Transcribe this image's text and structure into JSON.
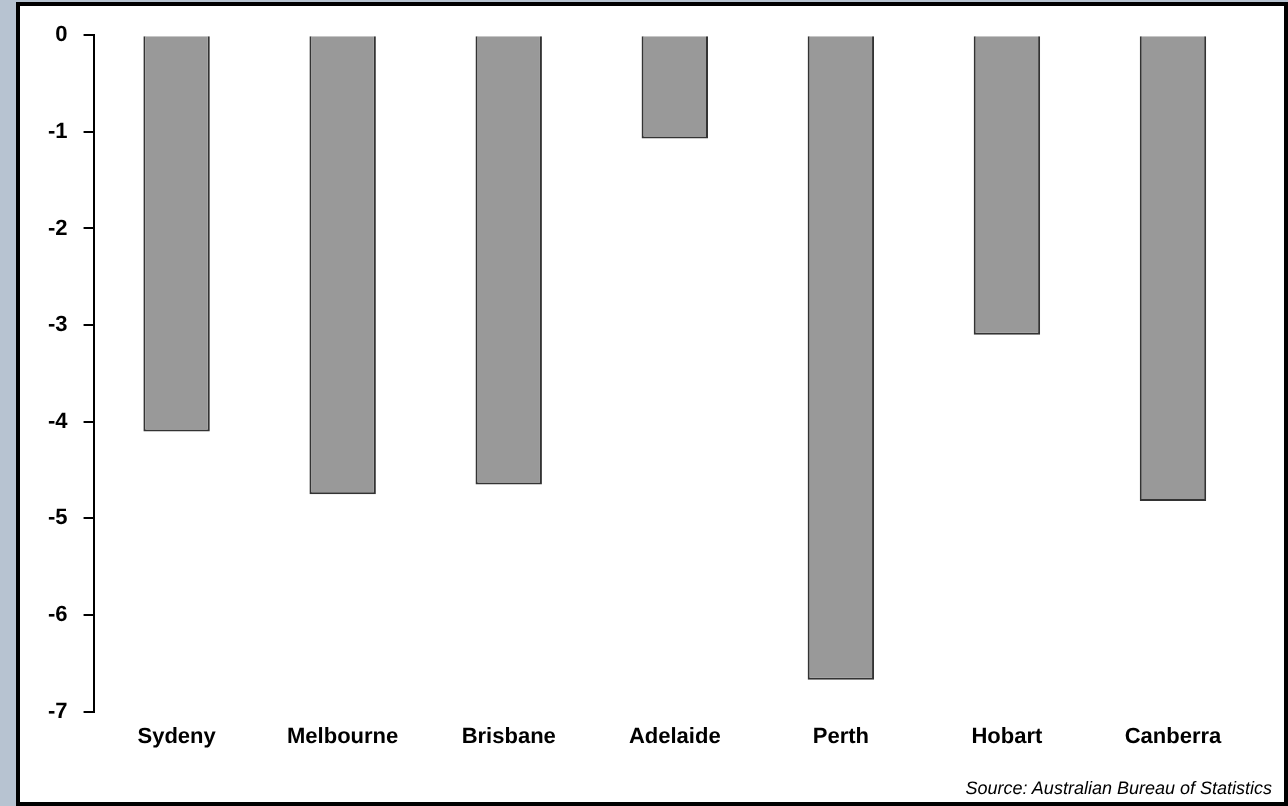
{
  "chart_data": {
    "type": "bar",
    "categories": [
      "Sydeny",
      "Melbourne",
      "Brisbane",
      "Adelaide",
      "Perth",
      "Hobart",
      "Canberra"
    ],
    "values": [
      -4.1,
      -4.75,
      -4.65,
      -1.07,
      -6.67,
      -3.1,
      -4.82
    ],
    "color": "#999999",
    "ylim": [
      -7,
      0
    ],
    "yticks": [
      -7,
      -6,
      -5,
      -4,
      -3,
      -2,
      -1,
      0
    ],
    "grid": false,
    "legend": false,
    "annotations": [
      "Source: Australian Bureau of Statistics"
    ]
  }
}
